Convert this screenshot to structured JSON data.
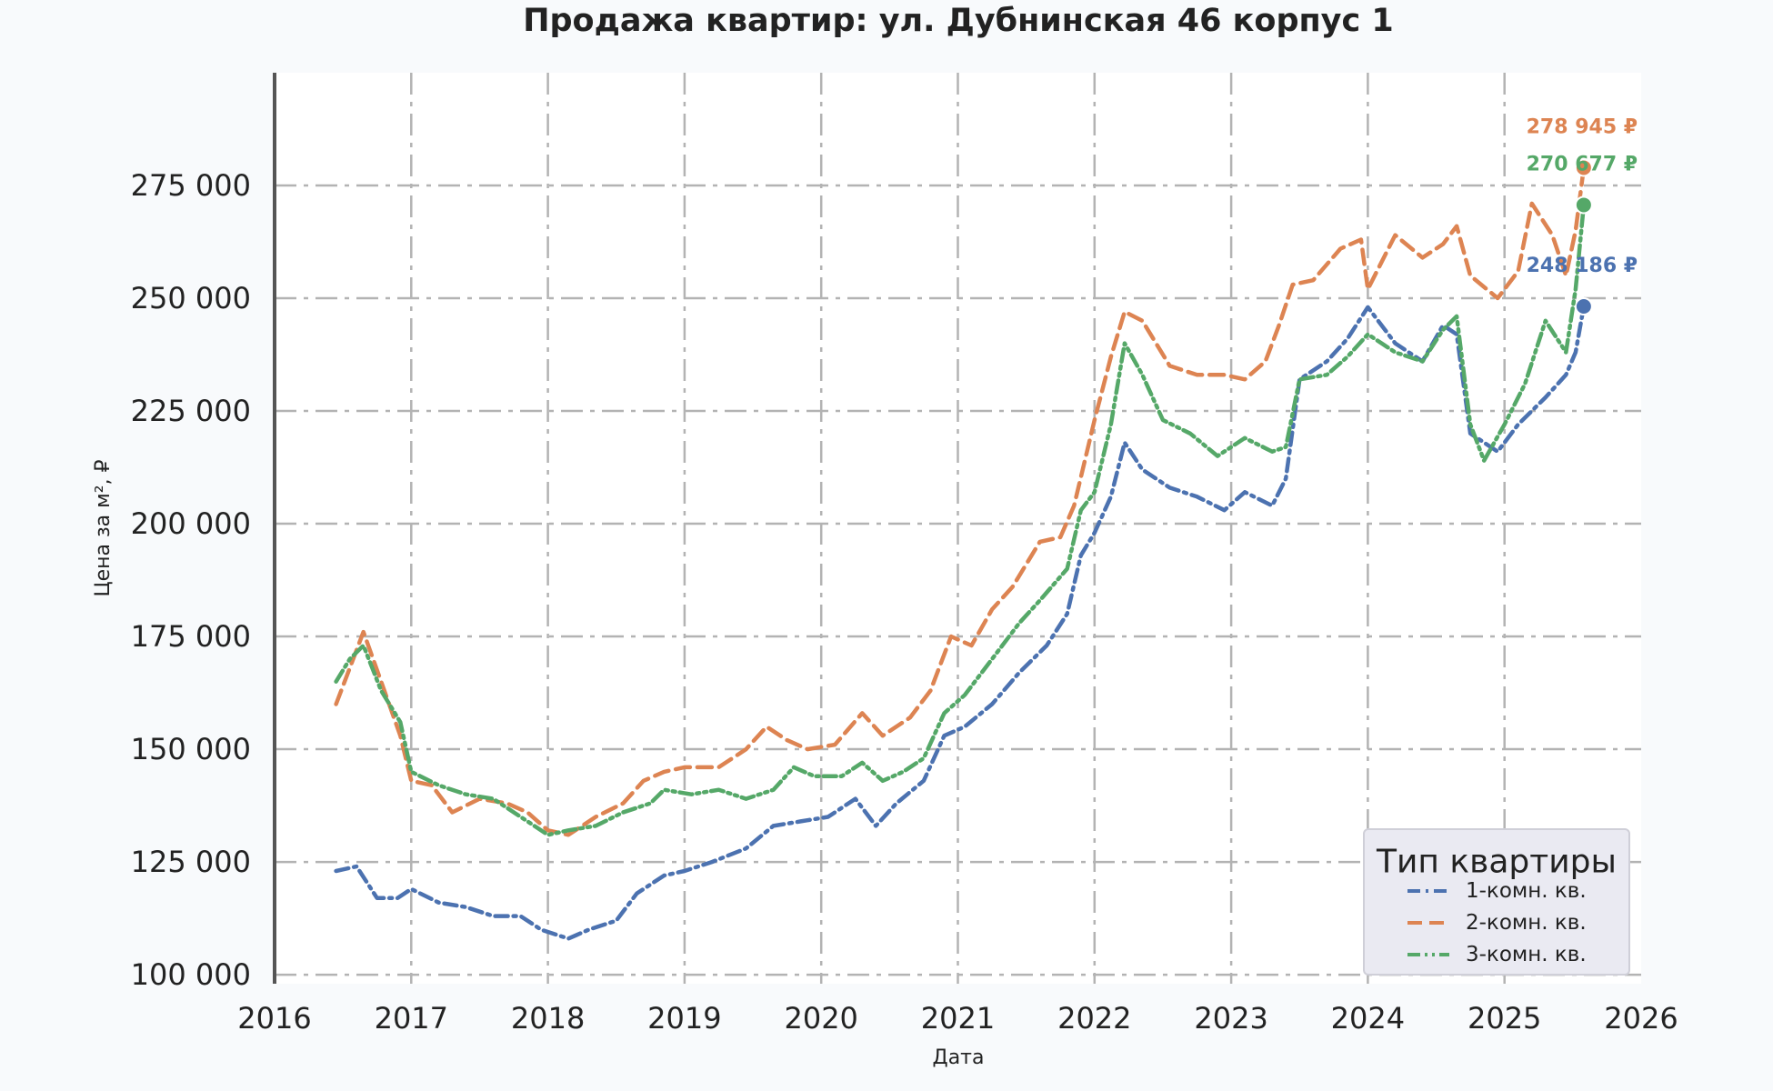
{
  "chart_data": {
    "type": "line",
    "title": "Продажа квартир: ул. Дубнинская 46 корпус 1",
    "xlabel": "Дата",
    "ylabel": "Цена за м², ₽",
    "xlim": [
      2016.0,
      2026.0
    ],
    "ylim": [
      98000,
      300000
    ],
    "x_ticks": [
      "2016",
      "2017",
      "2018",
      "2019",
      "2020",
      "2021",
      "2022",
      "2023",
      "2024",
      "2025",
      "2026"
    ],
    "y_ticks": [
      "100 000",
      "125 000",
      "150 000",
      "175 000",
      "200 000",
      "225 000",
      "250 000",
      "275 000"
    ],
    "grid": true,
    "legend": {
      "title": "Тип квартиры",
      "position": "bottom-right"
    },
    "series": [
      {
        "name": "1-комн. кв.",
        "color": "#4c72b0",
        "dash": "dashdot",
        "last_label": "248 186 ₽",
        "points": [
          [
            2016.45,
            123000
          ],
          [
            2016.6,
            124000
          ],
          [
            2016.75,
            117000
          ],
          [
            2016.9,
            117000
          ],
          [
            2017.0,
            119000
          ],
          [
            2017.2,
            116000
          ],
          [
            2017.4,
            115000
          ],
          [
            2017.6,
            113000
          ],
          [
            2017.8,
            113000
          ],
          [
            2017.95,
            110000
          ],
          [
            2018.15,
            108000
          ],
          [
            2018.3,
            110000
          ],
          [
            2018.5,
            112000
          ],
          [
            2018.65,
            118000
          ],
          [
            2018.85,
            122000
          ],
          [
            2019.0,
            123000
          ],
          [
            2019.2,
            125000
          ],
          [
            2019.45,
            128000
          ],
          [
            2019.65,
            133000
          ],
          [
            2019.85,
            134000
          ],
          [
            2020.05,
            135000
          ],
          [
            2020.25,
            139000
          ],
          [
            2020.4,
            133000
          ],
          [
            2020.55,
            138000
          ],
          [
            2020.75,
            143000
          ],
          [
            2020.9,
            153000
          ],
          [
            2021.05,
            155000
          ],
          [
            2021.25,
            160000
          ],
          [
            2021.45,
            167000
          ],
          [
            2021.65,
            173000
          ],
          [
            2021.8,
            180000
          ],
          [
            2021.9,
            193000
          ],
          [
            2022.0,
            198000
          ],
          [
            2022.12,
            206000
          ],
          [
            2022.22,
            218000
          ],
          [
            2022.35,
            212000
          ],
          [
            2022.55,
            208000
          ],
          [
            2022.75,
            206000
          ],
          [
            2022.95,
            203000
          ],
          [
            2023.1,
            207000
          ],
          [
            2023.3,
            204000
          ],
          [
            2023.4,
            210000
          ],
          [
            2023.5,
            232000
          ],
          [
            2023.7,
            236000
          ],
          [
            2023.85,
            241000
          ],
          [
            2024.0,
            248000
          ],
          [
            2024.2,
            240000
          ],
          [
            2024.4,
            236000
          ],
          [
            2024.55,
            244000
          ],
          [
            2024.65,
            242000
          ],
          [
            2024.75,
            220000
          ],
          [
            2024.95,
            216000
          ],
          [
            2025.1,
            222000
          ],
          [
            2025.3,
            228000
          ],
          [
            2025.45,
            233000
          ],
          [
            2025.52,
            238000
          ],
          [
            2025.58,
            248186
          ]
        ]
      },
      {
        "name": "2-комн. кв.",
        "color": "#dd8452",
        "dash": "dashed",
        "last_label": "278 945 ₽",
        "points": [
          [
            2016.45,
            160000
          ],
          [
            2016.55,
            168000
          ],
          [
            2016.65,
            176000
          ],
          [
            2016.78,
            165000
          ],
          [
            2016.92,
            153000
          ],
          [
            2017.0,
            143000
          ],
          [
            2017.15,
            142000
          ],
          [
            2017.3,
            136000
          ],
          [
            2017.5,
            139000
          ],
          [
            2017.7,
            138000
          ],
          [
            2017.85,
            136000
          ],
          [
            2018.0,
            132000
          ],
          [
            2018.15,
            131000
          ],
          [
            2018.35,
            135000
          ],
          [
            2018.55,
            138000
          ],
          [
            2018.7,
            143000
          ],
          [
            2018.85,
            145000
          ],
          [
            2019.0,
            146000
          ],
          [
            2019.25,
            146000
          ],
          [
            2019.45,
            150000
          ],
          [
            2019.6,
            155000
          ],
          [
            2019.75,
            152000
          ],
          [
            2019.9,
            150000
          ],
          [
            2020.1,
            151000
          ],
          [
            2020.3,
            158000
          ],
          [
            2020.45,
            153000
          ],
          [
            2020.65,
            157000
          ],
          [
            2020.8,
            163000
          ],
          [
            2020.95,
            175000
          ],
          [
            2021.1,
            173000
          ],
          [
            2021.25,
            181000
          ],
          [
            2021.4,
            186000
          ],
          [
            2021.6,
            196000
          ],
          [
            2021.75,
            197000
          ],
          [
            2021.85,
            204000
          ],
          [
            2022.0,
            223000
          ],
          [
            2022.12,
            237000
          ],
          [
            2022.22,
            247000
          ],
          [
            2022.35,
            245000
          ],
          [
            2022.55,
            235000
          ],
          [
            2022.75,
            233000
          ],
          [
            2022.95,
            233000
          ],
          [
            2023.1,
            232000
          ],
          [
            2023.25,
            236000
          ],
          [
            2023.35,
            244000
          ],
          [
            2023.45,
            253000
          ],
          [
            2023.6,
            254000
          ],
          [
            2023.8,
            261000
          ],
          [
            2023.95,
            263000
          ],
          [
            2024.0,
            252000
          ],
          [
            2024.2,
            264000
          ],
          [
            2024.4,
            259000
          ],
          [
            2024.55,
            262000
          ],
          [
            2024.65,
            266000
          ],
          [
            2024.75,
            255000
          ],
          [
            2024.95,
            250000
          ],
          [
            2025.1,
            256000
          ],
          [
            2025.2,
            271000
          ],
          [
            2025.35,
            264000
          ],
          [
            2025.45,
            255000
          ],
          [
            2025.52,
            265000
          ],
          [
            2025.58,
            278945
          ]
        ]
      },
      {
        "name": "3-комн. кв.",
        "color": "#55a868",
        "dash": "dashdotdot",
        "last_label": "270 677 ₽",
        "points": [
          [
            2016.45,
            165000
          ],
          [
            2016.55,
            170000
          ],
          [
            2016.65,
            173000
          ],
          [
            2016.78,
            163000
          ],
          [
            2016.92,
            156000
          ],
          [
            2017.0,
            145000
          ],
          [
            2017.2,
            142000
          ],
          [
            2017.4,
            140000
          ],
          [
            2017.6,
            139000
          ],
          [
            2017.85,
            134000
          ],
          [
            2018.0,
            131000
          ],
          [
            2018.15,
            132000
          ],
          [
            2018.35,
            133000
          ],
          [
            2018.55,
            136000
          ],
          [
            2018.75,
            138000
          ],
          [
            2018.85,
            141000
          ],
          [
            2019.05,
            140000
          ],
          [
            2019.25,
            141000
          ],
          [
            2019.45,
            139000
          ],
          [
            2019.65,
            141000
          ],
          [
            2019.8,
            146000
          ],
          [
            2019.95,
            144000
          ],
          [
            2020.15,
            144000
          ],
          [
            2020.3,
            147000
          ],
          [
            2020.45,
            143000
          ],
          [
            2020.6,
            145000
          ],
          [
            2020.75,
            148000
          ],
          [
            2020.9,
            158000
          ],
          [
            2021.05,
            162000
          ],
          [
            2021.25,
            170000
          ],
          [
            2021.45,
            178000
          ],
          [
            2021.6,
            183000
          ],
          [
            2021.8,
            190000
          ],
          [
            2021.9,
            203000
          ],
          [
            2022.0,
            207000
          ],
          [
            2022.12,
            222000
          ],
          [
            2022.22,
            240000
          ],
          [
            2022.35,
            233000
          ],
          [
            2022.5,
            223000
          ],
          [
            2022.7,
            220000
          ],
          [
            2022.9,
            215000
          ],
          [
            2023.1,
            219000
          ],
          [
            2023.3,
            216000
          ],
          [
            2023.4,
            217000
          ],
          [
            2023.5,
            232000
          ],
          [
            2023.7,
            233000
          ],
          [
            2023.85,
            237000
          ],
          [
            2024.0,
            242000
          ],
          [
            2024.2,
            238000
          ],
          [
            2024.4,
            236000
          ],
          [
            2024.55,
            243000
          ],
          [
            2024.65,
            246000
          ],
          [
            2024.75,
            222000
          ],
          [
            2024.85,
            214000
          ],
          [
            2025.0,
            222000
          ],
          [
            2025.15,
            231000
          ],
          [
            2025.3,
            245000
          ],
          [
            2025.45,
            238000
          ],
          [
            2025.52,
            252000
          ],
          [
            2025.58,
            270677
          ]
        ]
      }
    ]
  }
}
